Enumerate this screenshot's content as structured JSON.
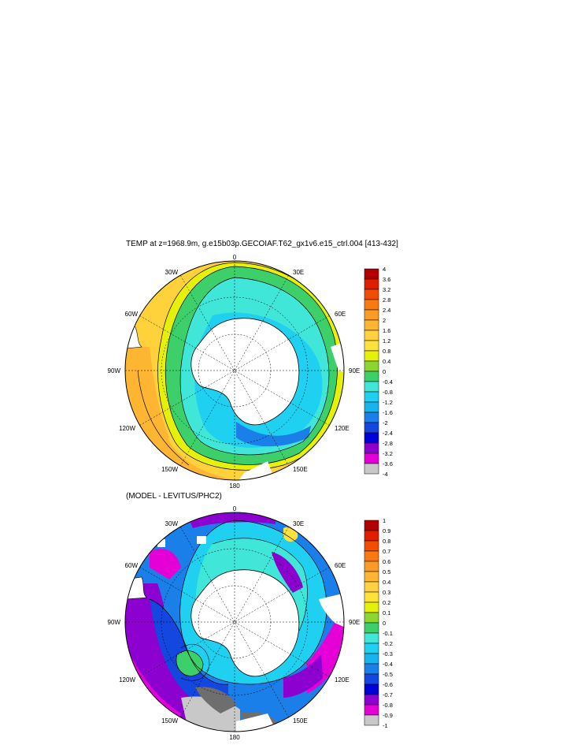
{
  "map1": {
    "title": "TEMP at z=1968.9m, g.e15b03p.GECOIAF.T62_gx1v6.e15_ctrl.004 [413-432]",
    "lon_labels": [
      "0",
      "30E",
      "60E",
      "90E",
      "120E",
      "150E",
      "180",
      "150W",
      "120W",
      "90W",
      "60W",
      "30W"
    ],
    "colorbar": {
      "labels": [
        "4",
        "3.6",
        "3.2",
        "2.8",
        "2.4",
        "2",
        "1.6",
        "1.2",
        "0.8",
        "0.4",
        "0",
        "-0.4",
        "-0.8",
        "-1.2",
        "-1.6",
        "-2",
        "-2.4",
        "-2.8",
        "-3.2",
        "-3.6",
        "-4"
      ],
      "colors": [
        "#b20000",
        "#e01e00",
        "#f24c00",
        "#f87a10",
        "#fb9a25",
        "#fdb532",
        "#ffd040",
        "#ffe13c",
        "#e6f00a",
        "#8cd630",
        "#3ccf6a",
        "#40e6d8",
        "#20d0f0",
        "#19b4ee",
        "#1a7fe8",
        "#1446e0",
        "#0000d8",
        "#8c00d0",
        "#e600d8",
        "#c8c8c8",
        "#6e6e6e"
      ]
    }
  },
  "map2": {
    "title": "(MODEL - LEVITUS/PHC2)",
    "lon_labels": [
      "0",
      "30E",
      "60E",
      "90E",
      "120E",
      "150E",
      "180",
      "150W",
      "120W",
      "90W",
      "60W",
      "30W"
    ],
    "colorbar": {
      "labels": [
        "1",
        "0.9",
        "0.8",
        "0.7",
        "0.6",
        "0.5",
        "0.4",
        "0.3",
        "0.2",
        "0.1",
        "0",
        "-0.1",
        "-0.2",
        "-0.3",
        "-0.4",
        "-0.5",
        "-0.6",
        "-0.7",
        "-0.8",
        "-0.9",
        "-1"
      ],
      "colors": [
        "#b20000",
        "#e01e00",
        "#f24c00",
        "#f87a10",
        "#fb9a25",
        "#fdb532",
        "#ffd040",
        "#ffe13c",
        "#e6f00a",
        "#8cd630",
        "#3ccf6a",
        "#40e6d8",
        "#20d0f0",
        "#19b4ee",
        "#1a7fe8",
        "#1446e0",
        "#0000d8",
        "#8c00d0",
        "#e600d8",
        "#c8c8c8",
        "#6e6e6e"
      ]
    }
  }
}
